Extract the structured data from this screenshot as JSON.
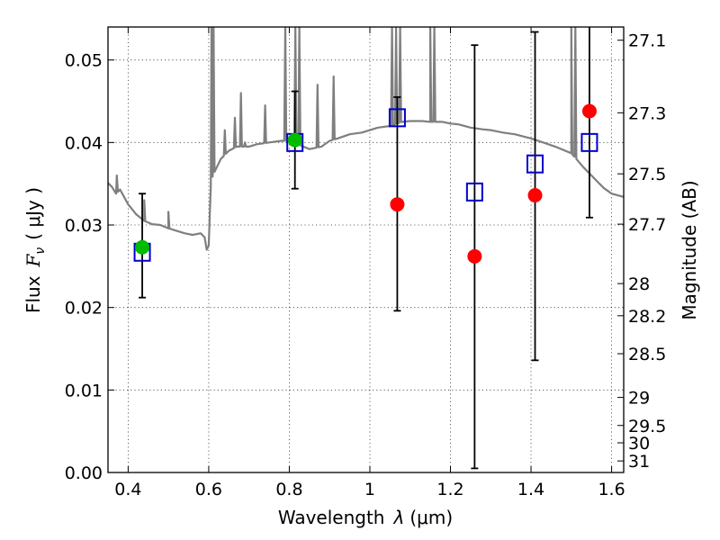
{
  "chart_data": {
    "type": "scatter",
    "xlabel_text": "Wavelength",
    "xlabel_symbol": "λ",
    "xlabel_unit": "(μm)",
    "ylabel_text": "Flux",
    "ylabel_symbol": "F",
    "ylabel_sub": "ν",
    "ylabel_unit": "( μJy )",
    "y2label": "Magnitude (AB)",
    "xlim": [
      0.35,
      1.63
    ],
    "ylim": [
      0.0,
      0.054
    ],
    "grid": true,
    "x_ticks": [
      0.4,
      0.6,
      0.8,
      1.0,
      1.2,
      1.4,
      1.6
    ],
    "x_tick_labels": [
      "0.4",
      "0.6",
      "0.8",
      "1",
      "1.2",
      "1.4",
      "1.6"
    ],
    "y_ticks": [
      0.0,
      0.01,
      0.02,
      0.03,
      0.04,
      0.05
    ],
    "y_tick_labels": [
      "0.00",
      "0.01",
      "0.02",
      "0.03",
      "0.04",
      "0.05"
    ],
    "y2_ticks": [
      {
        "label": "27.1",
        "flux": 0.0524
      },
      {
        "label": "27.3",
        "flux": 0.0436
      },
      {
        "label": "27.5",
        "flux": 0.0362
      },
      {
        "label": "27.7",
        "flux": 0.0301
      },
      {
        "label": "28",
        "flux": 0.0229
      },
      {
        "label": "28.2",
        "flux": 0.019
      },
      {
        "label": "28.5",
        "flux": 0.0144
      },
      {
        "label": "29",
        "flux": 0.0091
      },
      {
        "label": "29.5",
        "flux": 0.0057
      },
      {
        "label": "30",
        "flux": 0.0036
      },
      {
        "label": "31",
        "flux": 0.0014
      }
    ],
    "colors": {
      "spectrum": "#7f7f7f",
      "model_square": "#0000cc",
      "green_point": "#00bb00",
      "red_point": "#ff0000",
      "errorbar": "#000000"
    },
    "series": [
      {
        "kind": "model_spectrum",
        "x": [
          0.35,
          0.36,
          0.37,
          0.38,
          0.39,
          0.4,
          0.42,
          0.44,
          0.46,
          0.48,
          0.5,
          0.52,
          0.54,
          0.56,
          0.58,
          0.59,
          0.595,
          0.6,
          0.605,
          0.61,
          0.62,
          0.63,
          0.65,
          0.67,
          0.7,
          0.72,
          0.75,
          0.78,
          0.8,
          0.82,
          0.85,
          0.88,
          0.9,
          0.92,
          0.95,
          0.98,
          1.0,
          1.02,
          1.05,
          1.08,
          1.1,
          1.13,
          1.15,
          1.18,
          1.2,
          1.22,
          1.25,
          1.28,
          1.3,
          1.33,
          1.36,
          1.4,
          1.43,
          1.46,
          1.5,
          1.53,
          1.56,
          1.58,
          1.6,
          1.63
        ],
        "y": [
          0.0351,
          0.0346,
          0.0338,
          0.0343,
          0.0334,
          0.0325,
          0.0313,
          0.0305,
          0.0301,
          0.03,
          0.0296,
          0.0293,
          0.029,
          0.0288,
          0.029,
          0.0285,
          0.027,
          0.0275,
          0.0345,
          0.036,
          0.037,
          0.038,
          0.039,
          0.0395,
          0.0395,
          0.0398,
          0.04,
          0.0402,
          0.0402,
          0.0398,
          0.0392,
          0.0395,
          0.0402,
          0.0405,
          0.041,
          0.0412,
          0.0415,
          0.0418,
          0.042,
          0.0425,
          0.0426,
          0.0426,
          0.0425,
          0.0425,
          0.0423,
          0.0422,
          0.0418,
          0.0416,
          0.0415,
          0.0412,
          0.041,
          0.0405,
          0.04,
          0.0395,
          0.0387,
          0.037,
          0.0355,
          0.0345,
          0.0338,
          0.0334
        ],
        "emission_lines": [
          {
            "x": 0.372,
            "peak": 0.036
          },
          {
            "x": 0.44,
            "peak": 0.033
          },
          {
            "x": 0.5,
            "peak": 0.0316
          },
          {
            "x": 0.607,
            "peak": 0.054
          },
          {
            "x": 0.612,
            "peak": 0.054
          },
          {
            "x": 0.64,
            "peak": 0.0415
          },
          {
            "x": 0.665,
            "peak": 0.043
          },
          {
            "x": 0.68,
            "peak": 0.046
          },
          {
            "x": 0.69,
            "peak": 0.04
          },
          {
            "x": 0.74,
            "peak": 0.0445
          },
          {
            "x": 0.79,
            "peak": 0.054
          },
          {
            "x": 0.815,
            "peak": 0.054
          },
          {
            "x": 0.825,
            "peak": 0.054
          },
          {
            "x": 0.87,
            "peak": 0.047
          },
          {
            "x": 0.91,
            "peak": 0.048
          },
          {
            "x": 1.055,
            "peak": 0.054
          },
          {
            "x": 1.065,
            "peak": 0.054
          },
          {
            "x": 1.075,
            "peak": 0.054
          },
          {
            "x": 1.15,
            "peak": 0.054
          },
          {
            "x": 1.16,
            "peak": 0.054
          },
          {
            "x": 1.5,
            "peak": 0.054
          },
          {
            "x": 1.51,
            "peak": 0.054
          }
        ]
      },
      {
        "name": "",
        "kind": "model_photometry",
        "marker": "open-square",
        "x": [
          0.435,
          0.814,
          1.068,
          1.26,
          1.41,
          1.545
        ],
        "y": [
          0.0267,
          0.04,
          0.043,
          0.034,
          0.0374,
          0.04
        ]
      },
      {
        "kind": "detections",
        "marker": "filled-circle-green",
        "x": [
          0.435,
          0.814
        ],
        "y": [
          0.0273,
          0.0403
        ],
        "yerr_low": [
          0.0212,
          0.0344
        ],
        "yerr_high": [
          0.0338,
          0.0462
        ]
      },
      {
        "kind": "measurements",
        "marker": "filled-circle-red",
        "x": [
          1.068,
          1.26,
          1.41,
          1.545
        ],
        "y": [
          0.0325,
          0.0262,
          0.0336,
          0.0438
        ],
        "yerr_low": [
          0.0196,
          0.0005,
          0.0136,
          0.0309
        ],
        "yerr_high": [
          0.0455,
          0.0518,
          0.0534,
          0.057
        ]
      }
    ]
  }
}
